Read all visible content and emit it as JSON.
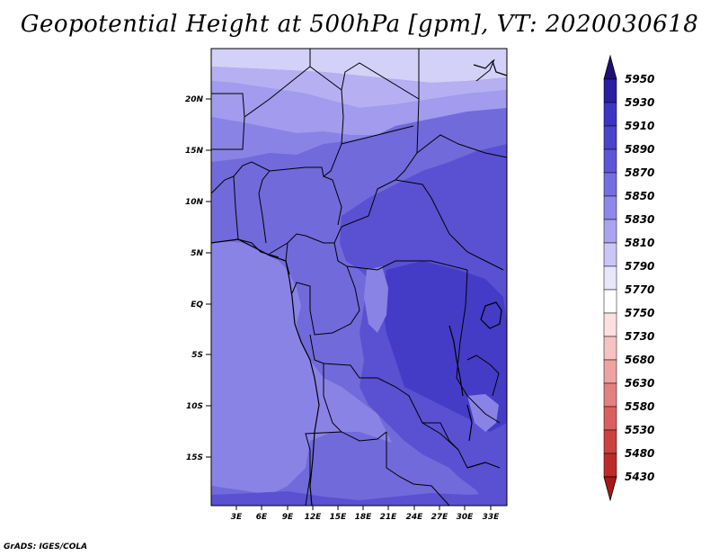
{
  "title": "Geopotential Height at 500hPa [gpm], VT: 2020030618",
  "credit": "GrADS: IGES/COLA",
  "map": {
    "x_ticks": [
      "3E",
      "6E",
      "9E",
      "12E",
      "15E",
      "18E",
      "21E",
      "24E",
      "27E",
      "30E",
      "33E"
    ],
    "y_ticks": [
      "20N",
      "15N",
      "10N",
      "5N",
      "EQ",
      "5S",
      "10S",
      "15S"
    ]
  },
  "colorbar": {
    "levels": [
      "5950",
      "5930",
      "5910",
      "5890",
      "5870",
      "5850",
      "5830",
      "5810",
      "5790",
      "5770",
      "5750",
      "5730",
      "5680",
      "5630",
      "5580",
      "5530",
      "5480",
      "5430"
    ],
    "colors": [
      "#1e1078",
      "#2a1fa0",
      "#3c35c4",
      "#4a43cc",
      "#5e56d6",
      "#756ee0",
      "#8f88ea",
      "#aaa4f0",
      "#cac6f6",
      "#e8e6fb",
      "#ffffff",
      "#fde0e0",
      "#f7c2c2",
      "#eea2a2",
      "#e48080",
      "#d96060",
      "#cc4040",
      "#bd2a2a",
      "#a81818"
    ]
  },
  "palette": {
    "c5810": "#b6b0f2",
    "c5830": "#a29bee",
    "c5850": "#8a83e6",
    "c5870": "#716ada",
    "c5890": "#5951d2",
    "c5910": "#443cc6",
    "c5790": "#d4d1f8"
  }
}
